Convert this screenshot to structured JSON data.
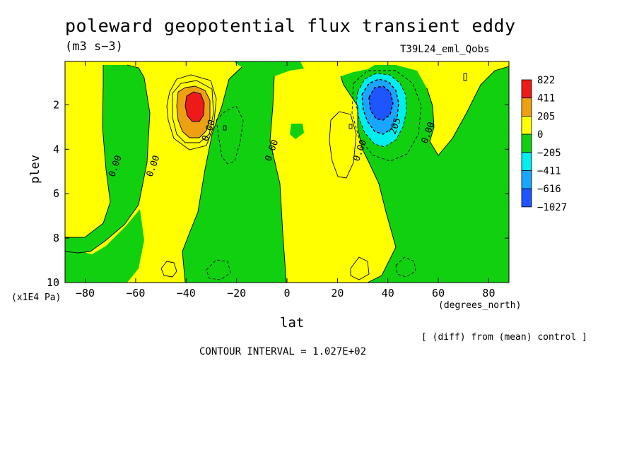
{
  "title": "poleward geopotential flux transient eddy",
  "units": "(m3 s−3)",
  "run_name": "T39L24_eml_Qobs",
  "diff_note": "[ (diff) from (mean) control ]",
  "contour_interval": "CONTOUR INTERVAL = 1.027E+02",
  "colors": {
    "red": "#ee1a1a",
    "orange": "#eea013",
    "yellow": "#ffff00",
    "green": "#10d010",
    "cyan": "#00eeee",
    "lightblue": "#19a6ff",
    "blue": "#1f55ff"
  },
  "chart_data": {
    "type": "heatmap",
    "title": "poleward geopotential flux transient eddy",
    "xlabel": "lat",
    "xunit": "(degrees_north)",
    "ylabel": "plev",
    "yunit": "(x1E4 Pa)",
    "xlim": [
      -88,
      88
    ],
    "ylim": [
      0.05,
      10
    ],
    "y_reversed": true,
    "xticks": [
      -80,
      -60,
      -40,
      -20,
      0,
      20,
      40,
      60,
      80
    ],
    "xtick_labels": [
      "−80",
      "−60",
      "−40",
      "−20",
      "0",
      "20",
      "40",
      "60",
      "80"
    ],
    "yticks": [
      2,
      4,
      6,
      8,
      10
    ],
    "ytick_labels": [
      "2",
      "4",
      "6",
      "8",
      "10"
    ],
    "legend": {
      "placement": "right",
      "labels": [
        "822",
        "411",
        "205",
        "0",
        "−205",
        "−411",
        "−616",
        "−1027"
      ],
      "colors": [
        "#ee1a1a",
        "#eea013",
        "#ffff00",
        "#10d010",
        "#00eeee",
        "#19a6ff",
        "#1f55ff"
      ]
    },
    "extrema": [
      {
        "name": "positive maximum",
        "lat": -37,
        "plev": 2.0,
        "value": 822
      },
      {
        "name": "negative minimum",
        "lat": 37,
        "plev": 2.0,
        "value": -1027
      }
    ],
    "contour_labels": [
      {
        "text": "0.00",
        "lat": -67,
        "plev": 4.8
      },
      {
        "text": "0.00",
        "lat": -52,
        "plev": 4.8
      },
      {
        "text": "0.00",
        "lat": -30,
        "plev": 3.2
      },
      {
        "text": "0.00",
        "lat": -5,
        "plev": 4.1
      },
      {
        "text": "0.00",
        "lat": 30,
        "plev": 4.1
      },
      {
        "text": "205",
        "lat": 44,
        "plev": 3.0
      },
      {
        "text": "0.00",
        "lat": 57,
        "plev": 3.3
      }
    ]
  }
}
